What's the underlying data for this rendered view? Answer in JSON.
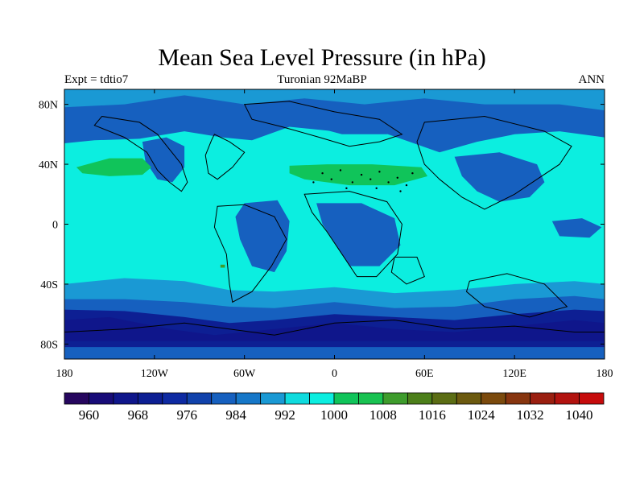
{
  "title": "Mean Sea Level Pressure (in hPa)",
  "subtitle_left": "Expt = tdtio7",
  "subtitle_center": "Turonian  92MaBP",
  "subtitle_right": "ANN",
  "x_ticks": [
    {
      "lon": -180,
      "label": "180"
    },
    {
      "lon": -120,
      "label": "120W"
    },
    {
      "lon": -60,
      "label": "60W"
    },
    {
      "lon": 0,
      "label": "0"
    },
    {
      "lon": 60,
      "label": "60E"
    },
    {
      "lon": 120,
      "label": "120E"
    },
    {
      "lon": 180,
      "label": "180"
    }
  ],
  "y_ticks": [
    {
      "lat": 80,
      "label": "80N"
    },
    {
      "lat": 40,
      "label": "40N"
    },
    {
      "lat": 0,
      "label": "0"
    },
    {
      "lat": -40,
      "label": "40S"
    },
    {
      "lat": -80,
      "label": "80S"
    }
  ],
  "colorbar": {
    "levels": [
      956,
      960,
      964,
      968,
      972,
      976,
      980,
      984,
      988,
      992,
      996,
      1000,
      1004,
      1008,
      1012,
      1016,
      1020,
      1024,
      1028,
      1032,
      1036,
      1040,
      1044
    ],
    "colors": [
      "#26065e",
      "#180c78",
      "#0f168b",
      "#0d1f93",
      "#0e2aa2",
      "#1142ab",
      "#1660bf",
      "#1677c8",
      "#1a99d4",
      "#0fdbde",
      "#0ceee0",
      "#10c45a",
      "#19c251",
      "#3e9c2c",
      "#4c7f1a",
      "#5b6d14",
      "#6c5a0f",
      "#7b4a0d",
      "#87350f",
      "#9a1f10",
      "#b2130f",
      "#c60b0c"
    ],
    "labels": [
      {
        "value": 960,
        "text": "960"
      },
      {
        "value": 968,
        "text": "968"
      },
      {
        "value": 976,
        "text": "976"
      },
      {
        "value": 984,
        "text": "984"
      },
      {
        "value": 992,
        "text": "992"
      },
      {
        "value": 1000,
        "text": "1000"
      },
      {
        "value": 1008,
        "text": "1008"
      },
      {
        "value": 1016,
        "text": "1016"
      },
      {
        "value": 1024,
        "text": "1024"
      },
      {
        "value": 1032,
        "text": "1032"
      },
      {
        "value": 1040,
        "text": "1040"
      }
    ]
  },
  "field_colors": {
    "ocean_base": "#0ceee0",
    "subpolar_low": "#1660bf",
    "antarctic_low": "#0d1f93",
    "antarctic_deep": "#0f168b",
    "mid_low": "#1a99d4",
    "subtropical_high": "#10c45a",
    "small_high": "#3e9c2c"
  }
}
